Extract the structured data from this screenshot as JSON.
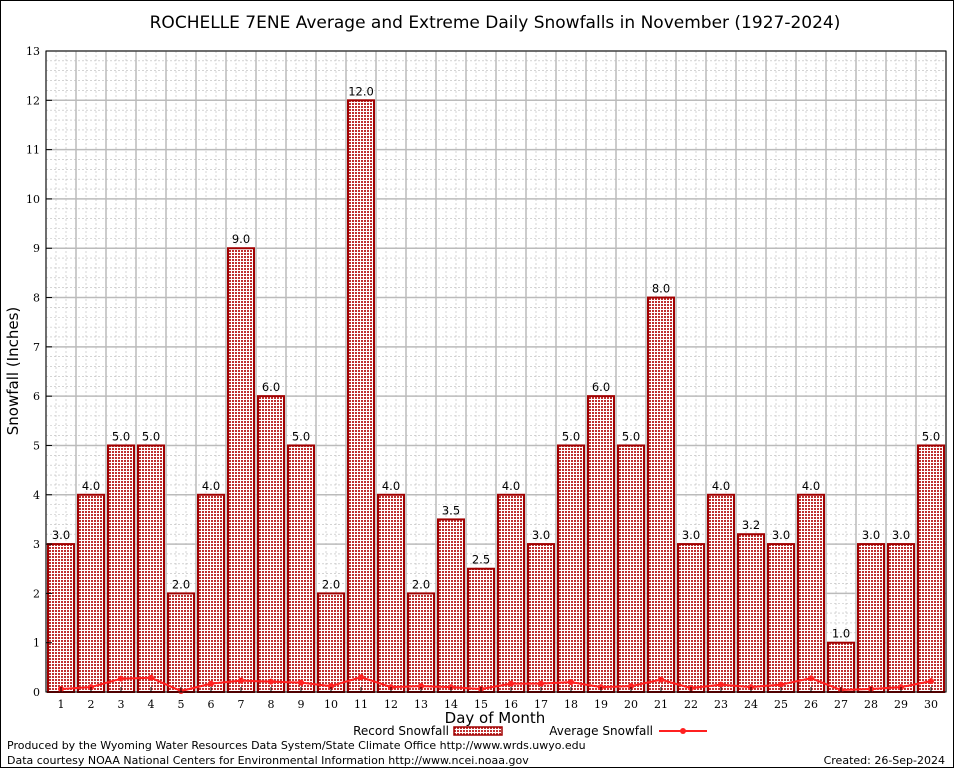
{
  "chart_data": {
    "type": "bar",
    "title": "ROCHELLE 7ENE Average and Extreme Daily Snowfalls in November (1927-2024)",
    "xlabel": "Day of Month",
    "ylabel": "Snowfall (Inches)",
    "ylim": [
      0,
      13
    ],
    "yticks": [
      0,
      1,
      2,
      3,
      4,
      5,
      6,
      7,
      8,
      9,
      10,
      11,
      12,
      13
    ],
    "grid": true,
    "legend_placement": "bottom",
    "categories": [
      "1",
      "2",
      "3",
      "4",
      "5",
      "6",
      "7",
      "8",
      "9",
      "10",
      "11",
      "12",
      "13",
      "14",
      "15",
      "16",
      "17",
      "18",
      "19",
      "20",
      "21",
      "22",
      "23",
      "24",
      "25",
      "26",
      "27",
      "28",
      "29",
      "30"
    ],
    "series": [
      {
        "name": "Record Snowfall",
        "type": "bar",
        "color": "#a00000",
        "values": [
          3.0,
          4.0,
          5.0,
          5.0,
          2.0,
          4.0,
          9.0,
          6.0,
          5.0,
          2.0,
          12.0,
          4.0,
          2.0,
          3.5,
          2.5,
          4.0,
          3.0,
          5.0,
          6.0,
          5.0,
          8.0,
          3.0,
          4.0,
          3.2,
          3.0,
          4.0,
          1.0,
          3.0,
          3.0,
          5.0
        ],
        "labels": [
          "3.0",
          "4.0",
          "5.0",
          "5.0",
          "2.0",
          "4.0",
          "9.0",
          "6.0",
          "5.0",
          "2.0",
          "12.0",
          "4.0",
          "2.0",
          "3.5",
          "2.5",
          "4.0",
          "3.0",
          "5.0",
          "6.0",
          "5.0",
          "8.0",
          "3.0",
          "4.0",
          "3.2",
          "3.0",
          "4.0",
          "1.0",
          "3.0",
          "3.0",
          "5.0"
        ]
      },
      {
        "name": "Average Snowfall",
        "type": "line",
        "color": "#ff2020",
        "values": [
          0.06,
          0.1,
          0.27,
          0.29,
          0.02,
          0.17,
          0.23,
          0.21,
          0.19,
          0.12,
          0.3,
          0.1,
          0.12,
          0.1,
          0.06,
          0.17,
          0.17,
          0.2,
          0.1,
          0.12,
          0.25,
          0.08,
          0.15,
          0.1,
          0.15,
          0.28,
          0.04,
          0.06,
          0.1,
          0.22
        ]
      }
    ]
  },
  "footer": {
    "produced": "Produced by the Wyoming Water Resources Data System/State Climate Office http://www.wrds.uwyo.edu",
    "courtesy": "Data courtesy NOAA National Centers for Environmental Information http://www.ncei.noaa.gov",
    "created": "Created: 26-Sep-2024"
  }
}
